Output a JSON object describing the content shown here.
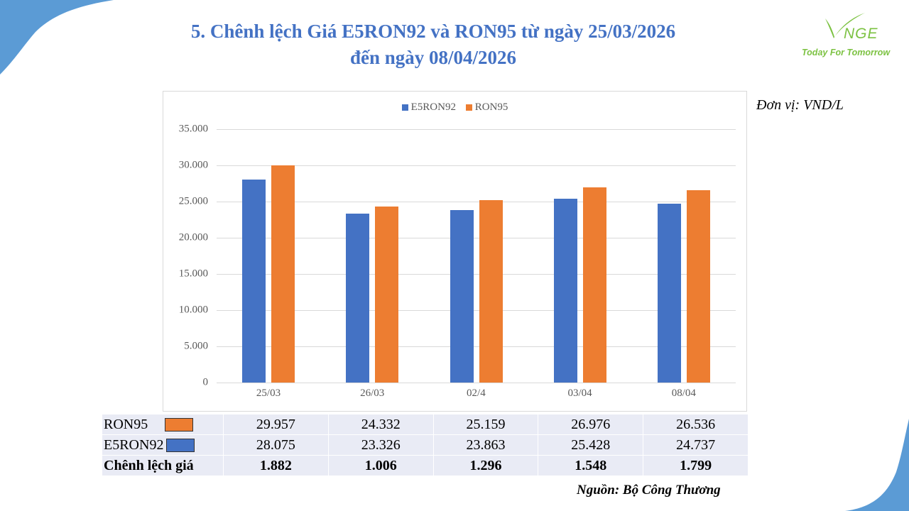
{
  "header": {
    "title_line1": "5. Chênh lệch Giá E5RON92 và RON95 từ ngày 25/03/2026",
    "title_line2": "đến ngày 08/04/2026"
  },
  "logo": {
    "brand": "NGE",
    "brand_initial": "V",
    "tagline": "Today For Tomorrow",
    "color": "#7cc242"
  },
  "unit_label": "Đơn vị: VND/L",
  "source_label": "Nguồn: Bộ Công Thương",
  "colors": {
    "E5RON92": "#4472c4",
    "RON95": "#ed7d31",
    "title": "#4472c4",
    "accent_shape": "#5b9bd5",
    "table_bg": "#e9ebf5"
  },
  "chart_data": {
    "type": "bar",
    "title": "",
    "xlabel": "",
    "ylabel": "",
    "categories": [
      "25/03",
      "26/03",
      "02/4",
      "03/04",
      "08/04"
    ],
    "series": [
      {
        "name": "E5RON92",
        "color": "#4472c4",
        "values": [
          28075,
          23326,
          23863,
          25428,
          24737
        ]
      },
      {
        "name": "RON95",
        "color": "#ed7d31",
        "values": [
          29957,
          24332,
          25159,
          26976,
          26536
        ]
      }
    ],
    "ylim": [
      0,
      35000
    ],
    "yticks": [
      "0",
      "5.000",
      "10.000",
      "15.000",
      "20.000",
      "25.000",
      "30.000",
      "35.000"
    ],
    "ytick_values": [
      0,
      5000,
      10000,
      15000,
      20000,
      25000,
      30000,
      35000
    ],
    "grid": true,
    "legend_position": "top",
    "legend": [
      "E5RON92",
      "RON95"
    ]
  },
  "table": {
    "rows": [
      {
        "label": "RON95",
        "swatch": "#ed7d31",
        "values": [
          "29.957",
          "24.332",
          "25.159",
          "26.976",
          "26.536"
        ]
      },
      {
        "label": "E5RON92",
        "swatch": "#4472c4",
        "values": [
          "28.075",
          "23.326",
          "23.863",
          "25.428",
          "24.737"
        ]
      },
      {
        "label": "Chênh lệch giá",
        "values": [
          "1.882",
          "1.006",
          "1.296",
          "1.548",
          "1.799"
        ]
      }
    ]
  }
}
